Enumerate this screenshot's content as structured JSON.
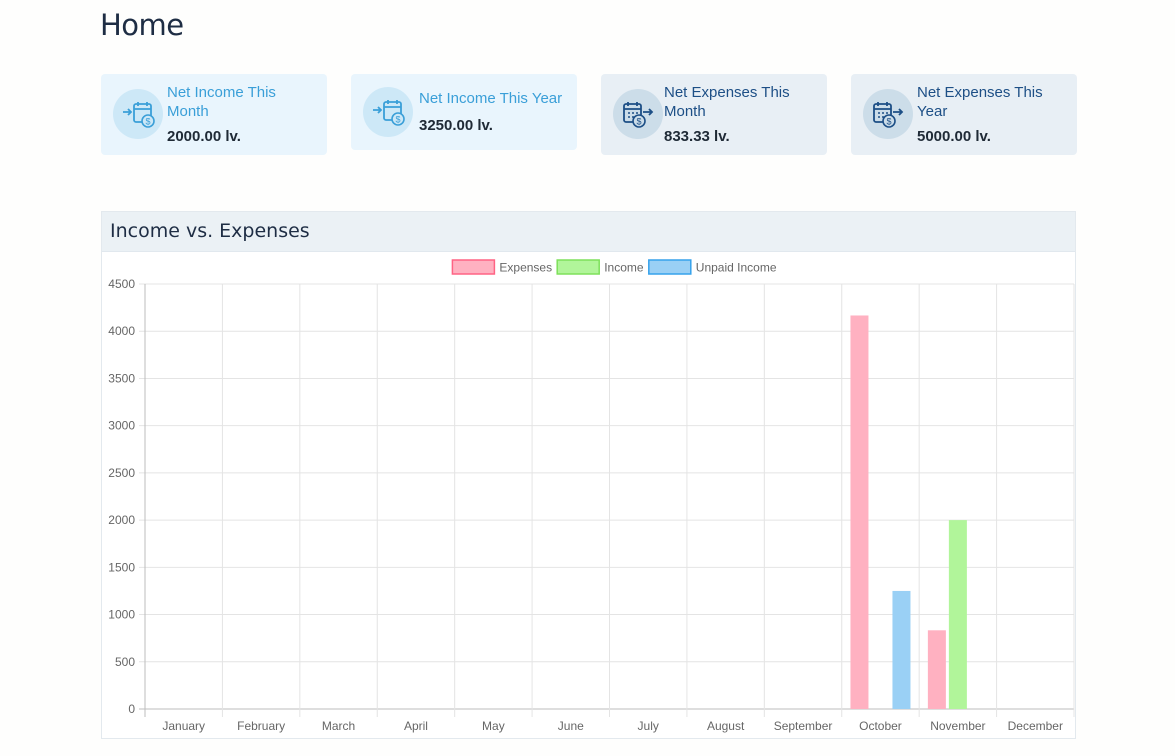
{
  "page": {
    "title": "Home"
  },
  "cards": [
    {
      "label": "Net Income This Month",
      "value": "2000.00 lv.",
      "kind": "income",
      "icon": "calendar-income-icon"
    },
    {
      "label": "Net Income This Year",
      "value": "3250.00 lv.",
      "kind": "income",
      "icon": "calendar-income-icon"
    },
    {
      "label": "Net Expenses This Month",
      "value": "833.33 lv.",
      "kind": "expense",
      "icon": "calendar-expense-icon"
    },
    {
      "label": "Net Expenses This Year",
      "value": "5000.00 lv.",
      "kind": "expense",
      "icon": "calendar-expense-icon"
    }
  ],
  "panel": {
    "title": "Income vs. Expenses"
  },
  "colors": {
    "income_accent": "#3a9fd8",
    "expense_accent": "#1d4f86"
  },
  "chart_data": {
    "type": "bar",
    "categories": [
      "January",
      "February",
      "March",
      "April",
      "May",
      "June",
      "July",
      "August",
      "September",
      "October",
      "November",
      "December"
    ],
    "series": [
      {
        "name": "Expenses",
        "values": [
          0,
          0,
          0,
          0,
          0,
          0,
          0,
          0,
          0,
          4166.67,
          833.33,
          0
        ],
        "color": "#ffb1c1",
        "border": "#ff6384"
      },
      {
        "name": "Income",
        "values": [
          0,
          0,
          0,
          0,
          0,
          0,
          0,
          0,
          0,
          0,
          2000,
          0
        ],
        "color": "#b1f59a",
        "border": "#7ee05b"
      },
      {
        "name": "Unpaid Income",
        "values": [
          0,
          0,
          0,
          0,
          0,
          0,
          0,
          0,
          0,
          1250,
          0,
          0
        ],
        "color": "#9ad0f5",
        "border": "#36a2eb"
      }
    ],
    "ylim": [
      0,
      4500
    ],
    "yticks": [
      0,
      500,
      1000,
      1500,
      2000,
      2500,
      3000,
      3500,
      4000,
      4500
    ],
    "grid": true,
    "legend": "top-center"
  }
}
